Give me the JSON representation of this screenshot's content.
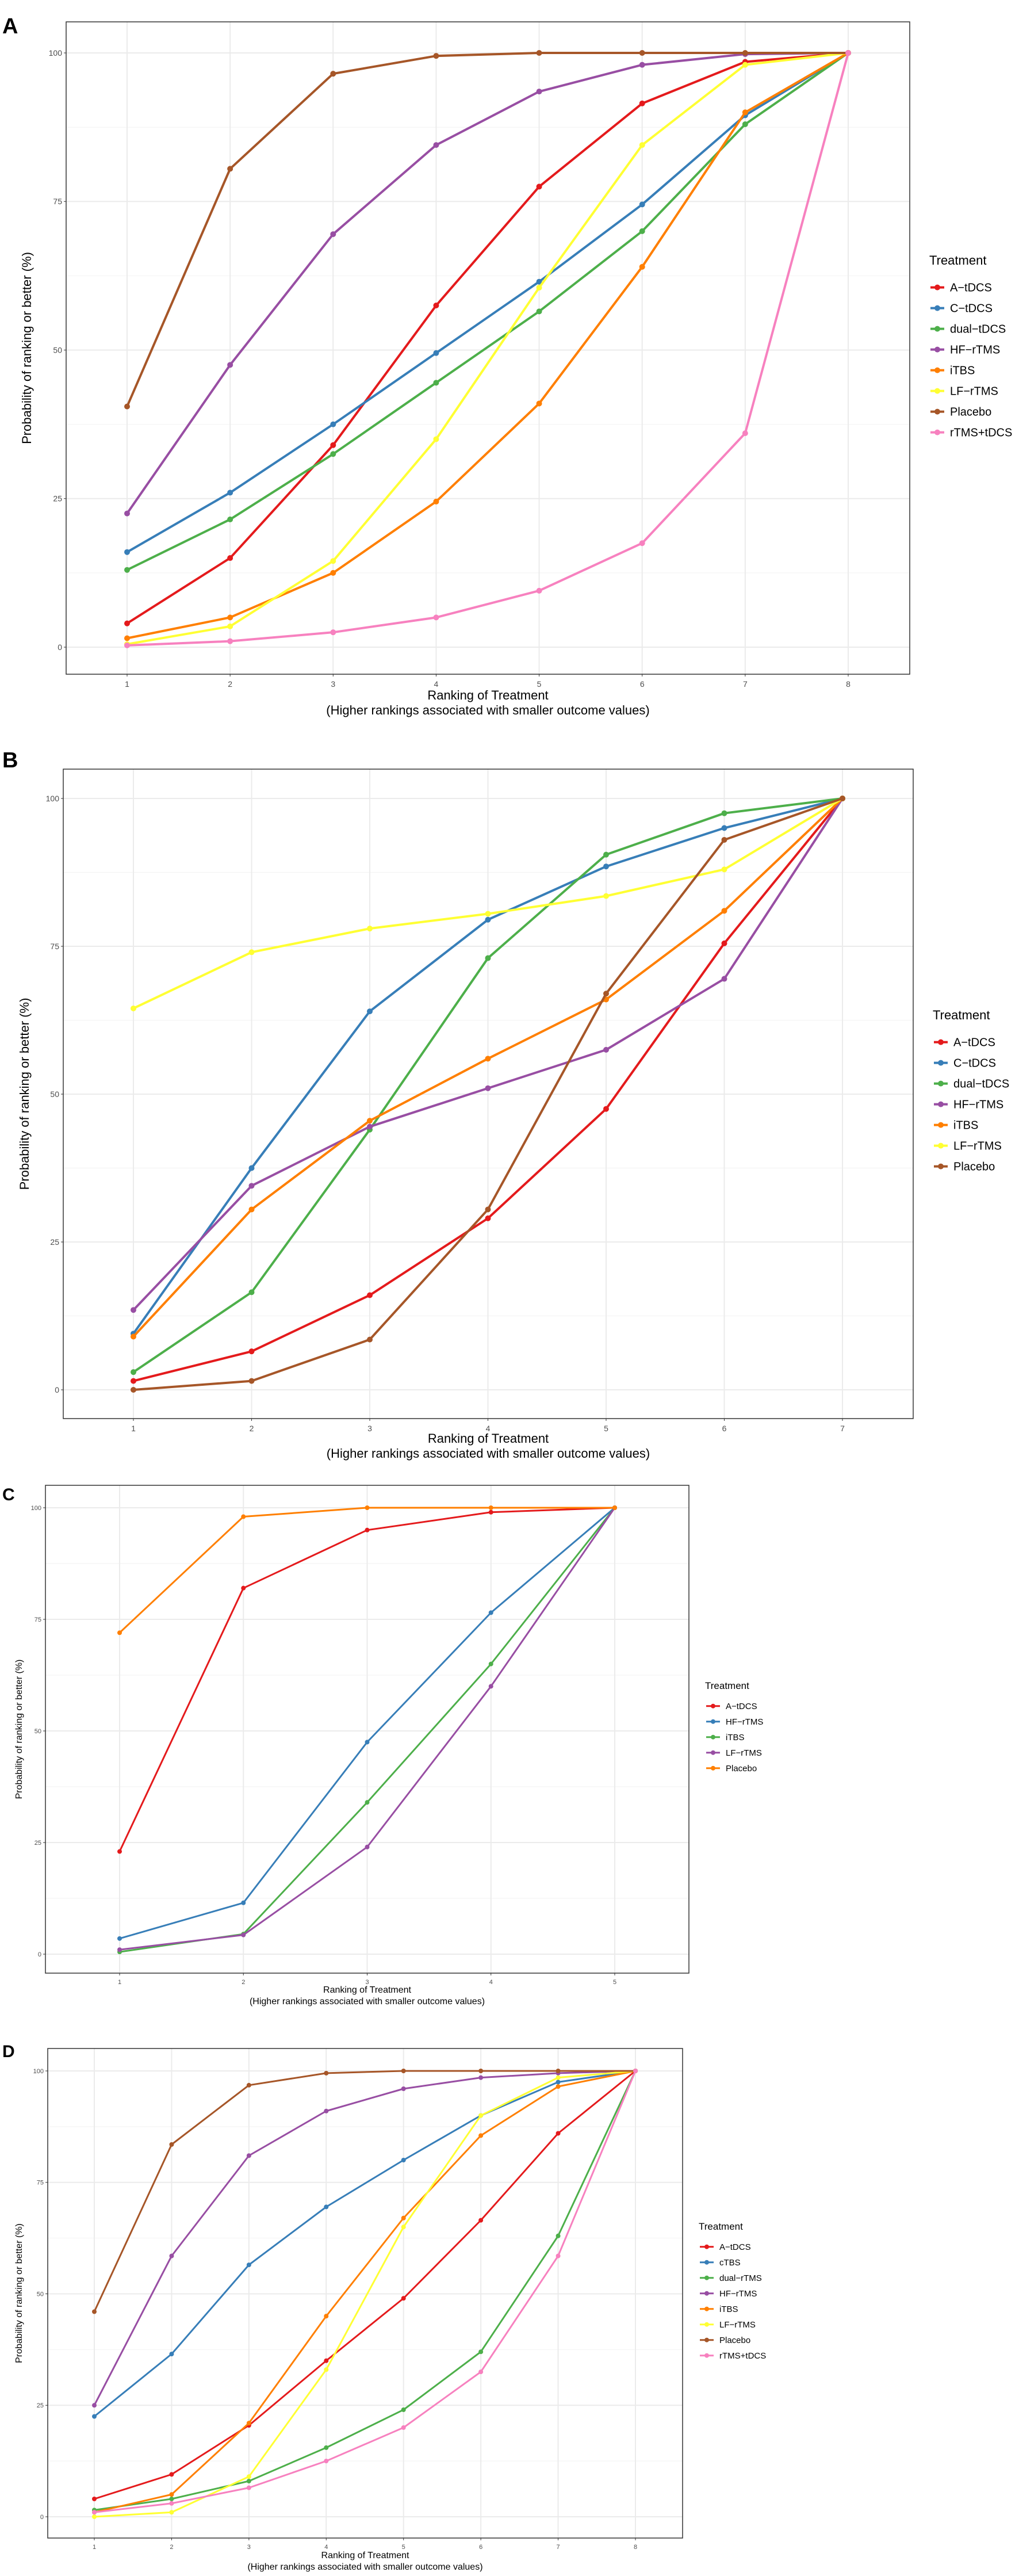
{
  "colors": {
    "A-tDCS": "#E41A1C",
    "C-tDCS": "#377EB8",
    "cTBS": "#377EB8",
    "dual-tDCS": "#4DAF4A",
    "dual-rTMS": "#4DAF4A",
    "HF-rTMS": "#984EA3",
    "iTBS": "#FF7F00",
    "LF-rTMS": "#FFFF33",
    "Placebo": "#A65628",
    "rTMS+tDCS": "#F781BF"
  },
  "chart_data": [
    {
      "panel": "A",
      "type": "line",
      "xlabel": "Ranking of Treatment",
      "xlabel_sub": "(Higher rankings associated with smaller outcome values)",
      "ylabel": "Probability of ranking or better (%)",
      "x": [
        1,
        2,
        3,
        4,
        5,
        6,
        7,
        8
      ],
      "yticks": [
        0,
        25,
        50,
        75,
        100
      ],
      "ylim": [
        -5,
        105
      ],
      "grid": true,
      "legend_title": "Treatment",
      "legend_position": "right",
      "series": [
        {
          "name": "A−tDCS",
          "color": "#E41A1C",
          "values": [
            4,
            15,
            34,
            57.5,
            77.5,
            91.5,
            98.5,
            100
          ]
        },
        {
          "name": "C−tDCS",
          "color": "#377EB8",
          "values": [
            16,
            26,
            37.5,
            49.5,
            61.5,
            74.5,
            89.5,
            100
          ]
        },
        {
          "name": "dual−tDCS",
          "color": "#4DAF4A",
          "values": [
            13,
            21.5,
            32.5,
            44.5,
            56.5,
            70,
            88,
            100
          ]
        },
        {
          "name": "HF−rTMS",
          "color": "#984EA3",
          "values": [
            22.5,
            47.5,
            69.5,
            84.5,
            93.5,
            98,
            99.8,
            100
          ]
        },
        {
          "name": "iTBS",
          "color": "#FF7F00",
          "values": [
            1.5,
            5,
            12.5,
            24.5,
            41,
            64,
            90,
            100
          ]
        },
        {
          "name": "LF−rTMS",
          "color": "#FFFF33",
          "values": [
            0.5,
            3.5,
            14.5,
            35,
            60.5,
            84.5,
            98,
            100
          ]
        },
        {
          "name": "Placebo",
          "color": "#A65628",
          "values": [
            40.5,
            80.5,
            96.5,
            99.5,
            100,
            100,
            100,
            100
          ]
        },
        {
          "name": "rTMS+tDCS",
          "color": "#F781BF",
          "values": [
            0.3,
            1,
            2.5,
            5,
            9.5,
            17.5,
            36,
            100
          ]
        }
      ]
    },
    {
      "panel": "B",
      "type": "line",
      "xlabel": "Ranking of Treatment",
      "xlabel_sub": "(Higher rankings associated with smaller outcome values)",
      "ylabel": "Probability of ranking or better (%)",
      "x": [
        1,
        2,
        3,
        4,
        5,
        6,
        7
      ],
      "yticks": [
        0,
        25,
        50,
        75,
        100
      ],
      "ylim": [
        -5,
        105
      ],
      "grid": true,
      "legend_title": "Treatment",
      "legend_position": "right",
      "series": [
        {
          "name": "A−tDCS",
          "color": "#E41A1C",
          "values": [
            1.5,
            6.5,
            16,
            29,
            47.5,
            75.5,
            100
          ]
        },
        {
          "name": "C−tDCS",
          "color": "#377EB8",
          "values": [
            9.5,
            37.5,
            64,
            79.5,
            88.5,
            95,
            100
          ]
        },
        {
          "name": "dual−tDCS",
          "color": "#4DAF4A",
          "values": [
            3,
            16.5,
            44,
            73,
            90.5,
            97.5,
            100
          ]
        },
        {
          "name": "HF−rTMS",
          "color": "#984EA3",
          "values": [
            13.5,
            34.5,
            44.5,
            51,
            57.5,
            69.5,
            100
          ]
        },
        {
          "name": "iTBS",
          "color": "#FF7F00",
          "values": [
            9,
            30.5,
            45.5,
            56,
            66,
            81,
            100
          ]
        },
        {
          "name": "LF−rTMS",
          "color": "#FFFF33",
          "values": [
            64.5,
            74,
            78,
            80.5,
            83.5,
            88,
            100
          ]
        },
        {
          "name": "Placebo",
          "color": "#A65628",
          "values": [
            0,
            1.5,
            8.5,
            30.5,
            67,
            93,
            100
          ]
        }
      ]
    },
    {
      "panel": "C",
      "type": "line",
      "xlabel": "Ranking of Treatment",
      "xlabel_sub": "(Higher rankings associated with smaller outcome values)",
      "ylabel": "Probability of ranking or better (%)",
      "x": [
        1,
        2,
        3,
        4,
        5
      ],
      "yticks": [
        0,
        25,
        50,
        75,
        100
      ],
      "ylim": [
        -4,
        105
      ],
      "grid": true,
      "legend_title": "Treatment",
      "legend_position": "right",
      "series": [
        {
          "name": "A−tDCS",
          "color": "#E41A1C",
          "values": [
            23,
            82,
            95,
            99,
            100
          ]
        },
        {
          "name": "HF−rTMS",
          "color": "#377EB8",
          "values": [
            3.5,
            11.5,
            47.5,
            76.5,
            100
          ]
        },
        {
          "name": "iTBS",
          "color": "#4DAF4A",
          "values": [
            0.5,
            4.5,
            34,
            65,
            100
          ]
        },
        {
          "name": "LF−rTMS",
          "color": "#984EA3",
          "values": [
            1,
            4.3,
            24,
            60,
            100
          ]
        },
        {
          "name": "Placebo",
          "color": "#FF7F00",
          "values": [
            72,
            98,
            100,
            100,
            100
          ]
        }
      ]
    },
    {
      "panel": "D",
      "type": "line",
      "xlabel": "Ranking of Treatment",
      "xlabel_sub": "(Higher rankings associated with smaller outcome values)",
      "ylabel": "Probability of ranking or better (%)",
      "x": [
        1,
        2,
        3,
        4,
        5,
        6,
        7,
        8
      ],
      "yticks": [
        0,
        25,
        50,
        75,
        100
      ],
      "ylim": [
        -5,
        105
      ],
      "grid": true,
      "legend_title": "Treatment",
      "legend_position": "right",
      "series": [
        {
          "name": "A−tDCS",
          "color": "#E41A1C",
          "values": [
            4,
            9.5,
            20.5,
            35,
            49,
            66.5,
            86,
            100
          ]
        },
        {
          "name": "cTBS",
          "color": "#377EB8",
          "values": [
            22.5,
            36.5,
            56.5,
            69.5,
            80,
            90,
            97.5,
            100
          ]
        },
        {
          "name": "dual−rTMS",
          "color": "#4DAF4A",
          "values": [
            1.5,
            4,
            8,
            15.5,
            24,
            37,
            63,
            100
          ]
        },
        {
          "name": "HF−rTMS",
          "color": "#984EA3",
          "values": [
            25,
            58.5,
            81,
            91,
            96,
            98.5,
            99.5,
            100
          ]
        },
        {
          "name": "iTBS",
          "color": "#FF7F00",
          "values": [
            1,
            5,
            21,
            45,
            67,
            85.5,
            96.5,
            100
          ]
        },
        {
          "name": "LF−rTMS",
          "color": "#FFFF33",
          "values": [
            0,
            1,
            9,
            33,
            65,
            90,
            98.5,
            100
          ]
        },
        {
          "name": "Placebo",
          "color": "#A65628",
          "values": [
            46,
            83.5,
            96.8,
            99.5,
            100,
            100,
            100,
            100
          ]
        },
        {
          "name": "rTMS+tDCS",
          "color": "#F781BF",
          "values": [
            1,
            3,
            6.5,
            12.5,
            20,
            32.5,
            58.5,
            100
          ]
        }
      ]
    }
  ]
}
